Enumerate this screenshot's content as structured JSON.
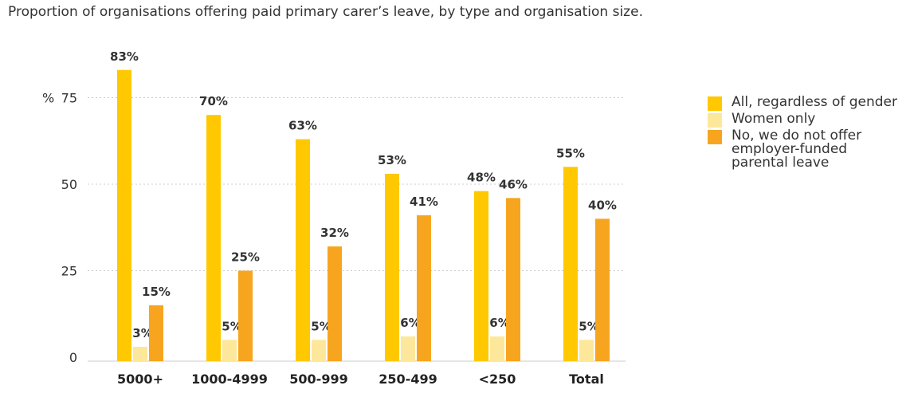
{
  "title": "Proportion of organisations offering paid primary carer’s leave, by type and organisation size.",
  "chart_data": {
    "type": "bar",
    "categories": [
      "5000+",
      "1000-4999",
      "500-999",
      "250-499",
      "<250",
      "Total"
    ],
    "series": [
      {
        "name": "All, regardless of gender",
        "color": "#FFC800",
        "values": [
          83,
          70,
          63,
          53,
          48,
          55
        ]
      },
      {
        "name": "Women only",
        "color": "#FDE79A",
        "values": [
          3,
          5,
          5,
          6,
          6,
          5
        ]
      },
      {
        "name": "No, we do not offer employer-funded parental leave",
        "color": "#F7A51F",
        "values": [
          15,
          25,
          32,
          41,
          46,
          40
        ]
      }
    ],
    "data_labels": [
      [
        "83%",
        "70%",
        "63%",
        "53%",
        "48%",
        "55%"
      ],
      [
        "3%",
        "5%",
        "5%",
        "6%",
        "6%",
        "5%"
      ],
      [
        "15%",
        "25%",
        "32%",
        "41%",
        "46%",
        "40%"
      ]
    ],
    "ylabel": "%",
    "yticks": [
      0,
      25,
      50,
      75
    ],
    "ytick_labels": [
      "0",
      "25",
      "50",
      "75"
    ],
    "ylim": [
      0,
      90
    ],
    "grid": true,
    "legend_position": "right",
    "legend_entries": [
      "All, regardless of gender",
      "Women only",
      [
        "No, we do not offer",
        "employer-funded",
        "parental leave"
      ]
    ]
  }
}
